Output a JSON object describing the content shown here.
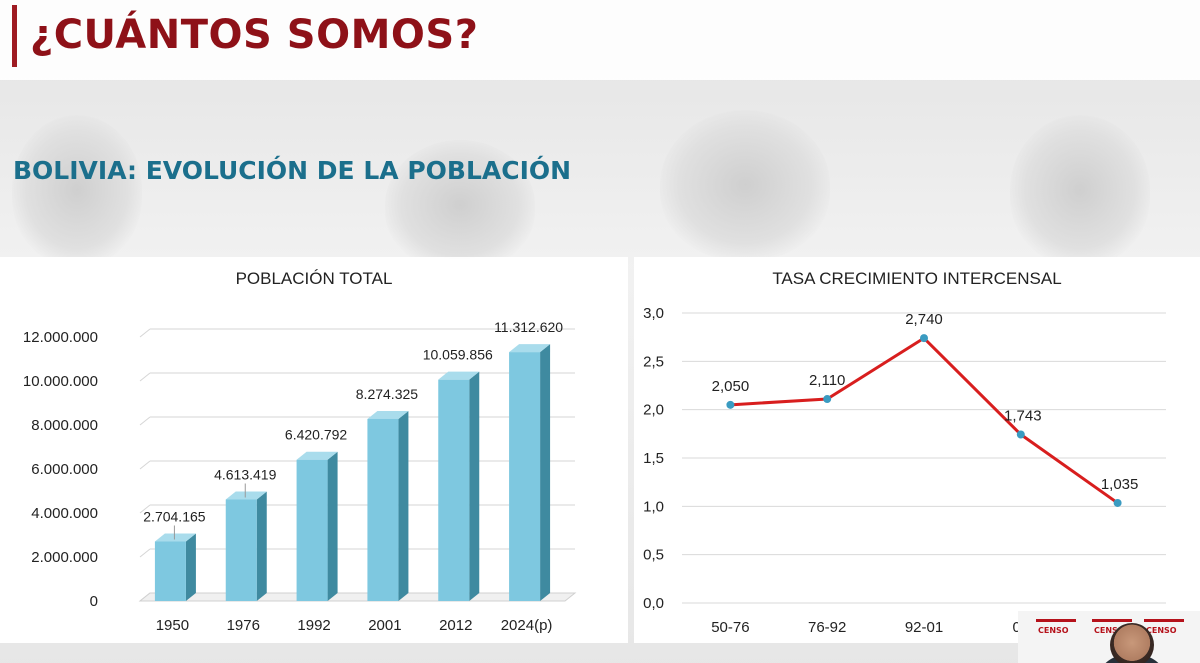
{
  "slide": {
    "title": "¿CUÁNTOS SOMOS?",
    "subtitle": "BOLIVIA: EVOLUCIÓN DE LA POBLACIÓN"
  },
  "webcam": {
    "logo_text": "CENSO"
  },
  "colors": {
    "title_red": "#8e1118",
    "subtitle_teal": "#1b6f8c",
    "bar_front": "#7ec8e0",
    "bar_side": "#3f8aa0",
    "bar_top": "#a9dcec",
    "line_red": "#d81e1e",
    "marker": "#3a9bc1"
  },
  "chart_data": [
    {
      "type": "bar",
      "title": "POBLACIÓN TOTAL",
      "categories": [
        "1950",
        "1976",
        "1992",
        "2001",
        "2012",
        "2024(p)"
      ],
      "values": [
        2704165,
        4613419,
        6420792,
        8274325,
        10059856,
        11312620
      ],
      "data_labels": [
        "2.704.165",
        "4.613.419",
        "6.420.792",
        "8.274.325",
        "10.059.856",
        "11.312.620"
      ],
      "ylim": [
        0,
        12000000
      ],
      "yticks": [
        0,
        2000000,
        4000000,
        6000000,
        8000000,
        10000000,
        12000000
      ],
      "ytick_labels": [
        "0",
        "2.000.000",
        "4.000.000",
        "6.000.000",
        "8.000.000",
        "10.000.000",
        "12.000.000"
      ],
      "grid": true,
      "style": "3d-column"
    },
    {
      "type": "line",
      "title": "TASA CRECIMIENTO INTERCENSAL",
      "categories": [
        "50-76",
        "76-92",
        "92-01",
        "01",
        ""
      ],
      "values": [
        2.05,
        2.11,
        2.74,
        1.743,
        1.035
      ],
      "data_labels": [
        "2,050",
        "2,110",
        "2,740",
        "1,743",
        "1,035"
      ],
      "ylim": [
        0,
        3
      ],
      "yticks": [
        0,
        0.5,
        1,
        1.5,
        2,
        2.5,
        3
      ],
      "ytick_labels": [
        "0,0",
        "0,5",
        "1,0",
        "1,5",
        "2,0",
        "2,5",
        "3,0"
      ],
      "grid": true
    }
  ]
}
